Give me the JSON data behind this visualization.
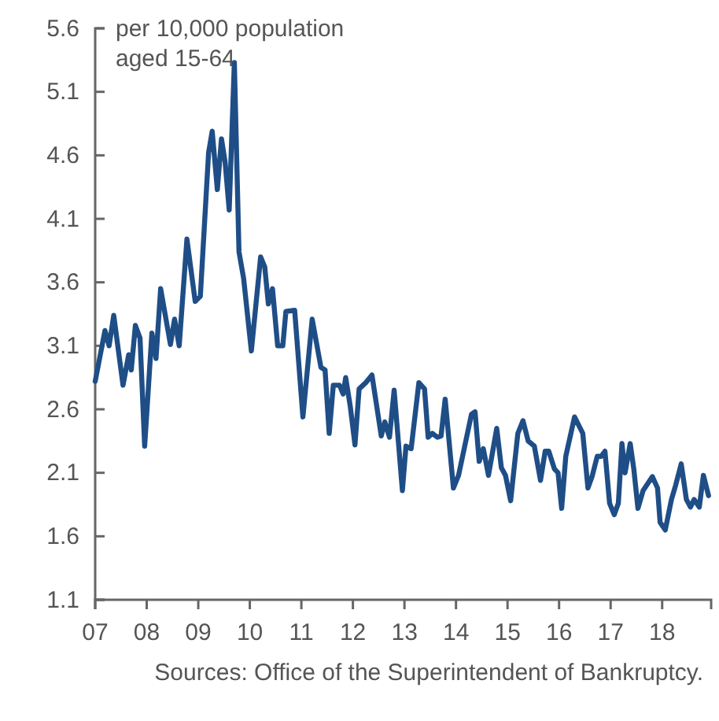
{
  "chart_data": {
    "type": "line",
    "ylabel": "per 10,000 population aged 15-64",
    "annotations": [
      "Sources: Office of the Superintendent of Bankruptcy."
    ],
    "x": [
      2007.0,
      2007.19,
      2007.27,
      2007.36,
      2007.54,
      2007.65,
      2007.7,
      2007.78,
      2007.87,
      2007.96,
      2008.1,
      2008.18,
      2008.27,
      2008.46,
      2008.54,
      2008.63,
      2008.78,
      2008.94,
      2009.04,
      2009.2,
      2009.27,
      2009.37,
      2009.45,
      2009.52,
      2009.6,
      2009.7,
      2009.79,
      2009.88,
      2010.03,
      2010.21,
      2010.29,
      2010.36,
      2010.44,
      2010.54,
      2010.64,
      2010.7,
      2010.87,
      2011.03,
      2011.21,
      2011.38,
      2011.46,
      2011.54,
      2011.62,
      2011.74,
      2011.81,
      2011.86,
      2011.95,
      2012.04,
      2012.12,
      2012.25,
      2012.37,
      2012.55,
      2012.62,
      2012.71,
      2012.8,
      2012.96,
      2013.03,
      2013.13,
      2013.28,
      2013.39,
      2013.46,
      2013.54,
      2013.64,
      2013.71,
      2013.79,
      2013.95,
      2014.05,
      2014.3,
      2014.37,
      2014.45,
      2014.53,
      2014.63,
      2014.79,
      2014.88,
      2014.96,
      2015.06,
      2015.2,
      2015.3,
      2015.4,
      2015.52,
      2015.64,
      2015.73,
      2015.8,
      2015.91,
      2015.98,
      2016.05,
      2016.13,
      2016.3,
      2016.46,
      2016.56,
      2016.64,
      2016.74,
      2016.82,
      2016.89,
      2016.98,
      2017.07,
      2017.15,
      2017.22,
      2017.28,
      2017.38,
      2017.45,
      2017.53,
      2017.63,
      2017.81,
      2017.91,
      2017.96,
      2018.06,
      2018.18,
      2018.26,
      2018.37,
      2018.47,
      2018.55,
      2018.62,
      2018.72,
      2018.8,
      2018.9
    ],
    "series": [
      {
        "color": "#1f4e87",
        "values": [
          2.82,
          3.22,
          3.1,
          3.34,
          2.79,
          3.03,
          2.91,
          3.26,
          3.16,
          2.31,
          3.2,
          3.0,
          3.55,
          3.11,
          3.31,
          3.1,
          3.94,
          3.45,
          3.49,
          4.62,
          4.79,
          4.33,
          4.73,
          4.55,
          4.17,
          5.33,
          3.84,
          3.63,
          3.06,
          3.8,
          3.72,
          3.43,
          3.55,
          3.1,
          3.1,
          3.37,
          3.38,
          2.54,
          3.31,
          2.93,
          2.91,
          2.41,
          2.79,
          2.79,
          2.72,
          2.85,
          2.62,
          2.32,
          2.76,
          2.81,
          2.87,
          2.39,
          2.5,
          2.38,
          2.75,
          1.96,
          2.31,
          2.29,
          2.81,
          2.76,
          2.38,
          2.41,
          2.38,
          2.39,
          2.68,
          1.98,
          2.08,
          2.56,
          2.58,
          2.19,
          2.29,
          2.08,
          2.45,
          2.14,
          2.08,
          1.88,
          2.41,
          2.51,
          2.35,
          2.31,
          2.04,
          2.27,
          2.27,
          2.13,
          2.1,
          1.82,
          2.23,
          2.54,
          2.41,
          1.98,
          2.07,
          2.23,
          2.23,
          2.27,
          1.86,
          1.77,
          1.86,
          2.33,
          2.1,
          2.33,
          2.13,
          1.82,
          1.96,
          2.07,
          1.98,
          1.71,
          1.65,
          1.89,
          2.0,
          2.17,
          1.89,
          1.83,
          1.89,
          1.83,
          2.08,
          1.92
        ]
      }
    ],
    "xlim": [
      2007,
      2018.95
    ],
    "xticks": [
      {
        "value": 2007,
        "label": "07"
      },
      {
        "value": 2008,
        "label": "08"
      },
      {
        "value": 2009,
        "label": "09"
      },
      {
        "value": 2010,
        "label": "10"
      },
      {
        "value": 2011,
        "label": "11"
      },
      {
        "value": 2012,
        "label": "12"
      },
      {
        "value": 2013,
        "label": "13"
      },
      {
        "value": 2014,
        "label": "14"
      },
      {
        "value": 2015,
        "label": "15"
      },
      {
        "value": 2016,
        "label": "16"
      },
      {
        "value": 2017,
        "label": "17"
      },
      {
        "value": 2018,
        "label": "18"
      }
    ],
    "ylim": [
      1.1,
      5.6
    ],
    "yticks": [
      1.1,
      1.6,
      2.1,
      2.6,
      3.1,
      3.6,
      4.1,
      4.6,
      5.1,
      5.6
    ],
    "grid": false,
    "marker": "none",
    "line_style": "solid"
  }
}
